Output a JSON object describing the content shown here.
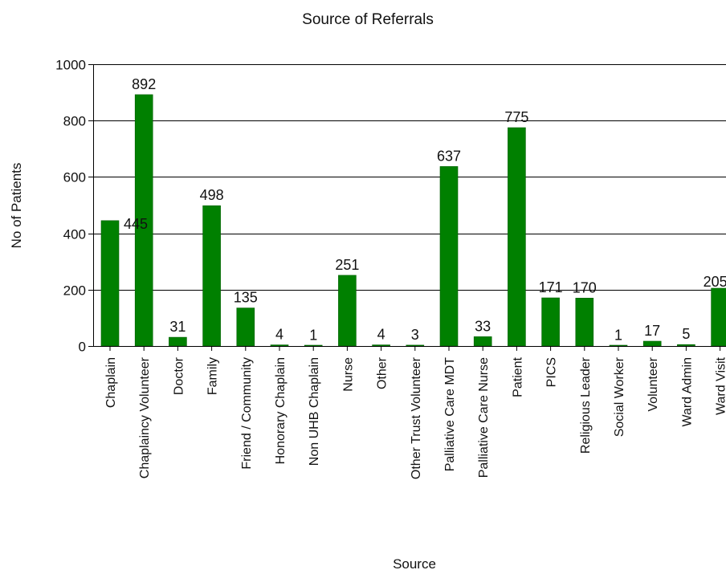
{
  "chart_data": {
    "type": "bar",
    "title": "Source of Referrals",
    "xlabel": "Source",
    "ylabel": "No of Patients",
    "ylim": [
      0,
      1000
    ],
    "yticks": [
      0,
      200,
      400,
      600,
      800,
      1000
    ],
    "ytick_labels": [
      "0",
      "200",
      "400",
      "600",
      "800",
      "1000"
    ],
    "grid": true,
    "legend": "none",
    "colors": {
      "bar": "#008000",
      "bar_edge": "#005f00",
      "grid": "#000000"
    },
    "categories": [
      "Chaplain",
      "Chaplaincy Volunteer",
      "Doctor",
      "Family",
      "Friend / Community",
      "Honorary Chaplain",
      "Non UHB Chaplain",
      "Nurse",
      "Other",
      "Other Trust Volunteer",
      "Palliative Care MDT",
      "Palliative Care Nurse",
      "Patient",
      "PICS",
      "Religious Leader",
      "Social Worker",
      "Volunteer",
      "Ward Admin",
      "Ward Visit"
    ],
    "values": [
      445,
      892,
      31,
      498,
      135,
      4,
      1,
      251,
      4,
      3,
      637,
      33,
      775,
      171,
      170,
      1,
      17,
      5,
      205
    ],
    "value_labels": [
      "445",
      "892",
      "31",
      "498",
      "135",
      "4",
      "1",
      "251",
      "4",
      "3",
      "637",
      "33",
      "775",
      "171",
      "170",
      "1",
      "17",
      "5",
      "205"
    ]
  }
}
